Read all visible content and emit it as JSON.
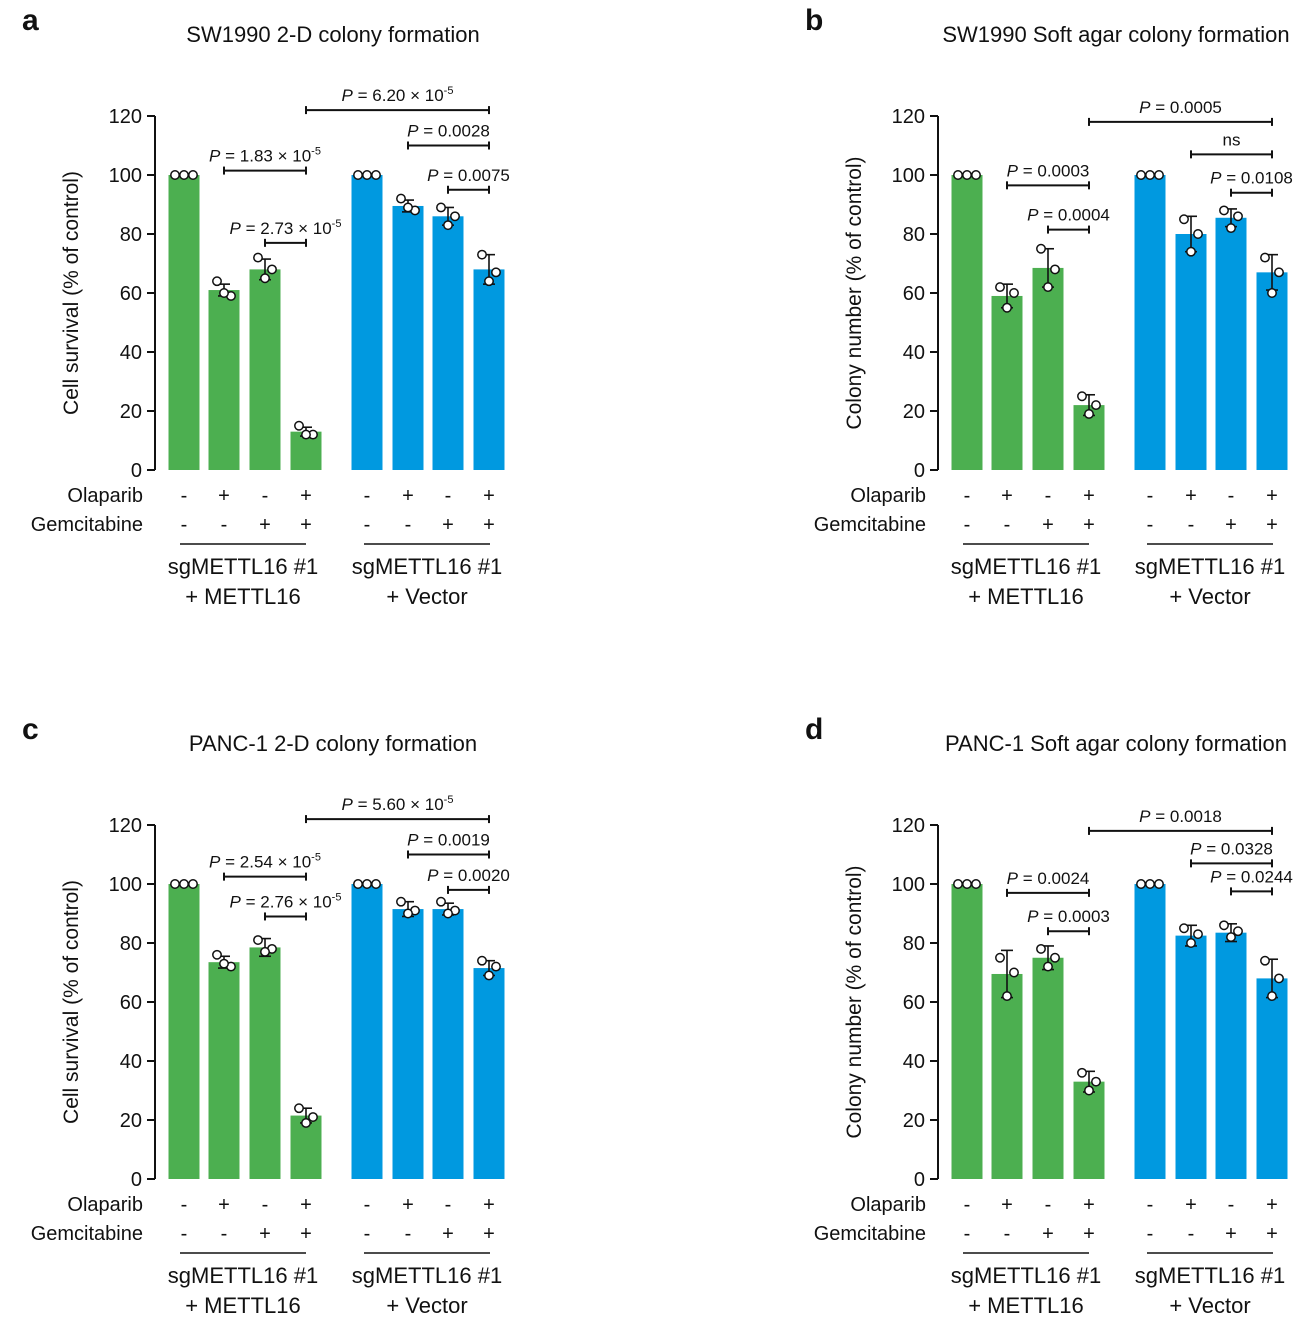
{
  "colors": {
    "group1": "#4caf50",
    "group2": "#0099e0"
  },
  "chart_data": [
    {
      "type": "bar",
      "panel_label": "a",
      "title": "SW1990 2-D colony formation",
      "ylabel": "Cell survival (% of control)",
      "ylim": [
        0,
        120
      ],
      "yticks": [
        "0",
        "20",
        "40",
        "60",
        "80",
        "100",
        "120"
      ],
      "row_labels": [
        "Olaparib",
        "Gemcitabine"
      ],
      "olaparib": [
        "-",
        "+",
        "-",
        "+",
        "-",
        "+",
        "-",
        "+"
      ],
      "gemcitabine": [
        "-",
        "-",
        "+",
        "+",
        "-",
        "-",
        "+",
        "+"
      ],
      "groups": [
        {
          "line1": "sgMETTL16 #1",
          "line2": "+ METTL16",
          "color": "#4caf50",
          "values": [
            100,
            61,
            68,
            13
          ],
          "sd": [
            0,
            2,
            3.5,
            1.5
          ]
        },
        {
          "line1": "sgMETTL16 #1",
          "line2": "+ Vector",
          "color": "#0099e0",
          "values": [
            100,
            89.5,
            86,
            68
          ],
          "sd": [
            0,
            2,
            3,
            5
          ]
        }
      ],
      "points": [
        [
          100,
          100,
          100
        ],
        [
          64,
          59,
          60
        ],
        [
          72,
          68,
          65
        ],
        [
          15,
          12,
          12
        ],
        [
          100,
          100,
          100
        ],
        [
          92,
          88,
          89
        ],
        [
          89,
          86,
          83
        ],
        [
          73,
          67,
          64
        ]
      ],
      "comparisons": [
        {
          "from": 1,
          "to": 3,
          "level": 101.5,
          "p": "1.83",
          "exp": "-5"
        },
        {
          "from": 2,
          "to": 3,
          "level": 77,
          "p": "2.73",
          "exp": "-5"
        },
        {
          "from": 3,
          "to": 7,
          "level": 122,
          "p": "6.20",
          "exp": "-5"
        },
        {
          "from": 5,
          "to": 7,
          "level": 110,
          "p": "0.0028"
        },
        {
          "from": 6,
          "to": 7,
          "level": 95,
          "p": "0.0075"
        }
      ]
    },
    {
      "type": "bar",
      "panel_label": "b",
      "title": "SW1990 Soft agar colony formation",
      "ylabel": "Colony number (% of control)",
      "ylim": [
        0,
        120
      ],
      "yticks": [
        "0",
        "20",
        "40",
        "60",
        "80",
        "100",
        "120"
      ],
      "row_labels": [
        "Olaparib",
        "Gemcitabine"
      ],
      "olaparib": [
        "-",
        "+",
        "-",
        "+",
        "-",
        "+",
        "-",
        "+"
      ],
      "gemcitabine": [
        "-",
        "-",
        "+",
        "+",
        "-",
        "-",
        "+",
        "+"
      ],
      "groups": [
        {
          "line1": "sgMETTL16 #1",
          "line2": "+ METTL16",
          "color": "#4caf50",
          "values": [
            100,
            59,
            68.5,
            22
          ],
          "sd": [
            0,
            4,
            6.5,
            3.5
          ]
        },
        {
          "line1": "sgMETTL16 #1",
          "line2": "+ Vector",
          "color": "#0099e0",
          "values": [
            100,
            80,
            85.5,
            67
          ],
          "sd": [
            0,
            6,
            3,
            6
          ]
        }
      ],
      "points": [
        [
          100,
          100,
          100
        ],
        [
          62,
          60,
          55
        ],
        [
          75,
          68,
          62
        ],
        [
          25,
          22,
          19
        ],
        [
          100,
          100,
          100
        ],
        [
          85,
          80,
          74
        ],
        [
          88,
          86,
          82
        ],
        [
          72,
          67,
          60
        ]
      ],
      "comparisons": [
        {
          "from": 1,
          "to": 3,
          "level": 96.5,
          "p": "0.0003"
        },
        {
          "from": 2,
          "to": 3,
          "level": 81.5,
          "p": "0.0004"
        },
        {
          "from": 3,
          "to": 7,
          "level": 118,
          "p": "0.0005"
        },
        {
          "from": 5,
          "to": 7,
          "level": 107,
          "ns": true,
          "label": "ns"
        },
        {
          "from": 6,
          "to": 7,
          "level": 94,
          "p": "0.0108"
        }
      ]
    },
    {
      "type": "bar",
      "panel_label": "c",
      "title": "PANC-1 2-D colony formation",
      "ylabel": "Cell survival (% of control)",
      "ylim": [
        0,
        120
      ],
      "yticks": [
        "0",
        "20",
        "40",
        "60",
        "80",
        "100",
        "120"
      ],
      "row_labels": [
        "Olaparib",
        "Gemcitabine"
      ],
      "olaparib": [
        "-",
        "+",
        "-",
        "+",
        "-",
        "+",
        "-",
        "+"
      ],
      "gemcitabine": [
        "-",
        "-",
        "+",
        "+",
        "-",
        "-",
        "+",
        "+"
      ],
      "groups": [
        {
          "line1": "sgMETTL16 #1",
          "line2": "+ METTL16",
          "color": "#4caf50",
          "values": [
            100,
            73.5,
            78.5,
            21.5
          ],
          "sd": [
            0,
            2,
            3,
            2.5
          ]
        },
        {
          "line1": "sgMETTL16 #1",
          "line2": "+ Vector",
          "color": "#0099e0",
          "values": [
            100,
            91.5,
            91.5,
            71.5
          ],
          "sd": [
            0,
            2.5,
            2,
            2.5
          ]
        }
      ],
      "points": [
        [
          100,
          100,
          100
        ],
        [
          76,
          72,
          73
        ],
        [
          81,
          78,
          77
        ],
        [
          24,
          21,
          19
        ],
        [
          100,
          100,
          100
        ],
        [
          94,
          91,
          90
        ],
        [
          94,
          91,
          90
        ],
        [
          74,
          72,
          69
        ]
      ],
      "comparisons": [
        {
          "from": 1,
          "to": 3,
          "level": 102.5,
          "p": "2.54",
          "exp": "-5"
        },
        {
          "from": 2,
          "to": 3,
          "level": 89,
          "p": "2.76",
          "exp": "-5"
        },
        {
          "from": 3,
          "to": 7,
          "level": 122,
          "p": "5.60",
          "exp": "-5"
        },
        {
          "from": 5,
          "to": 7,
          "level": 110,
          "p": "0.0019"
        },
        {
          "from": 6,
          "to": 7,
          "level": 98,
          "p": "0.0020"
        }
      ]
    },
    {
      "type": "bar",
      "panel_label": "d",
      "title": "PANC-1 Soft agar colony formation",
      "ylabel": "Colony number (% of control)",
      "ylim": [
        0,
        120
      ],
      "yticks": [
        "0",
        "20",
        "40",
        "60",
        "80",
        "100",
        "120"
      ],
      "row_labels": [
        "Olaparib",
        "Gemcitabine"
      ],
      "olaparib": [
        "-",
        "+",
        "-",
        "+",
        "-",
        "+",
        "-",
        "+"
      ],
      "gemcitabine": [
        "-",
        "-",
        "+",
        "+",
        "-",
        "-",
        "+",
        "+"
      ],
      "groups": [
        {
          "line1": "sgMETTL16 #1",
          "line2": "+ METTL16",
          "color": "#4caf50",
          "values": [
            100,
            69.5,
            75,
            33
          ],
          "sd": [
            0,
            8,
            4,
            3.5
          ]
        },
        {
          "line1": "sgMETTL16 #1",
          "line2": "+ Vector",
          "color": "#0099e0",
          "values": [
            100,
            82.5,
            83.5,
            68
          ],
          "sd": [
            0,
            3.5,
            3,
            6.5
          ]
        }
      ],
      "points": [
        [
          100,
          100,
          100
        ],
        [
          75,
          70,
          62
        ],
        [
          78,
          75,
          72
        ],
        [
          36,
          33,
          30
        ],
        [
          100,
          100,
          100
        ],
        [
          85,
          83,
          80
        ],
        [
          86,
          84,
          82
        ],
        [
          74,
          68,
          62
        ]
      ],
      "comparisons": [
        {
          "from": 1,
          "to": 3,
          "level": 97,
          "p": "0.0024"
        },
        {
          "from": 2,
          "to": 3,
          "level": 84,
          "p": "0.0003"
        },
        {
          "from": 3,
          "to": 7,
          "level": 118,
          "p": "0.0018"
        },
        {
          "from": 5,
          "to": 7,
          "level": 107,
          "p": "0.0328"
        },
        {
          "from": 6,
          "to": 7,
          "level": 97.5,
          "p": "0.0244"
        }
      ]
    }
  ]
}
